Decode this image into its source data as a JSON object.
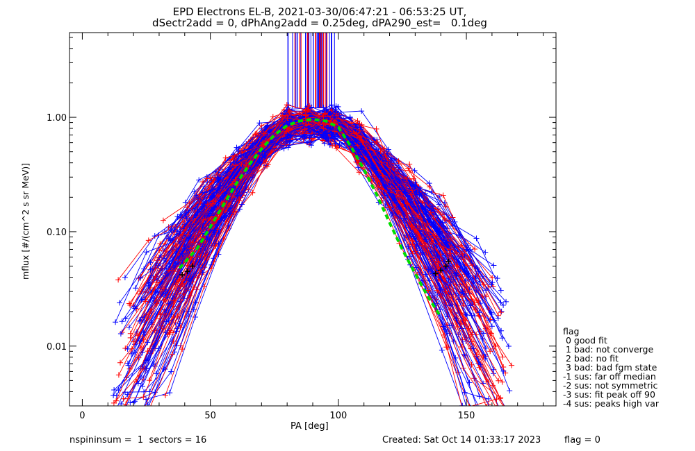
{
  "header": {
    "title_line1": "EPD Electrons EL-B, 2021-03-30/06:47:21 - 06:53:25 UT,",
    "title_line2": "dSectr2add = 0, dPhAng2add = 0.25deg, dPA290_est=   0.1deg"
  },
  "footer": {
    "left": "nspininsum =  1  sectors = 16",
    "created": "Created: Sat Oct 14 01:33:17 2023",
    "flag": "flag = 0"
  },
  "legend": {
    "title": "flag",
    "entries": [
      " 0 good fit",
      " 1 bad: not converge",
      " 2 bad: no fit",
      " 3 bad: bad fgm state",
      "-1 sus: far off median",
      "-2 sus: not symmetric",
      "-3 sus: fit peak off 90",
      "-4 sus: peaks high var"
    ]
  },
  "chart_data": {
    "type": "line",
    "xlabel": "PA [deg]",
    "ylabel": "mflux [#/(cm^2 s sr MeV)]",
    "xlim": [
      -5,
      185
    ],
    "ylim": [
      0.003,
      5.5
    ],
    "yscale": "log",
    "xticks": [
      0,
      50,
      100,
      150
    ],
    "xtick_labels": [
      "0",
      "50",
      "100",
      "150"
    ],
    "yticks": [
      0.01,
      0.1,
      1.0
    ],
    "ytick_labels": [
      "0.01",
      "0.10",
      "1.00"
    ],
    "colors": {
      "red": "#ff0000",
      "blue": "#0000ff",
      "green": "#00dd00",
      "black": "#000000"
    },
    "median_fit": {
      "color": "#00dd00",
      "x": [
        38,
        45,
        50,
        55,
        60,
        65,
        70,
        75,
        80,
        85,
        90,
        95,
        100,
        105,
        110,
        115,
        120,
        125,
        130,
        135,
        140
      ],
      "y": [
        0.048,
        0.072,
        0.11,
        0.17,
        0.26,
        0.38,
        0.53,
        0.7,
        0.85,
        0.93,
        0.96,
        0.93,
        0.82,
        0.55,
        0.35,
        0.21,
        0.12,
        0.07,
        0.043,
        0.027,
        0.018
      ]
    },
    "fit_points": {
      "color": "#000000",
      "x": [
        39,
        41,
        43,
        138,
        140,
        142,
        143
      ],
      "y": [
        0.042,
        0.045,
        0.05,
        0.043,
        0.046,
        0.05,
        0.055
      ]
    },
    "curve_count": 170,
    "peak_marker_lines": {
      "pa_range": [
        80,
        99
      ],
      "y_range": [
        1.2,
        5.5
      ],
      "count": 45
    }
  }
}
